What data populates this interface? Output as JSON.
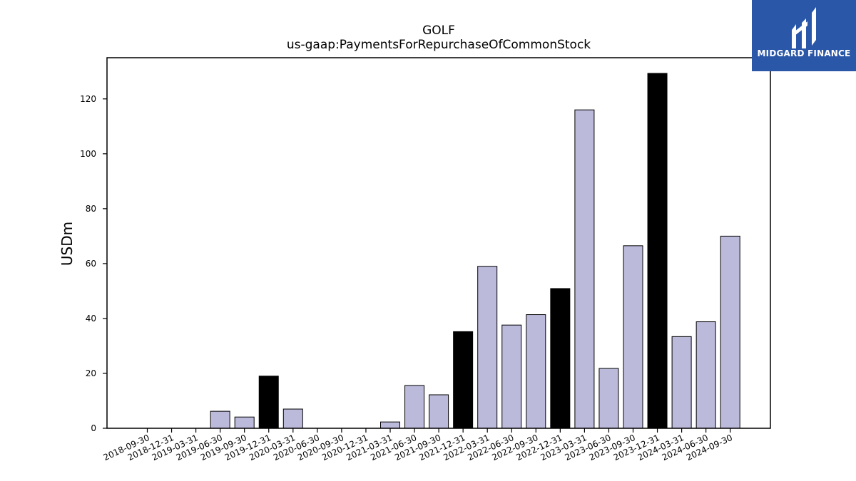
{
  "chart_data": {
    "type": "bar",
    "title": "GOLF",
    "subtitle": "us-gaap:PaymentsForRepurchaseOfCommonStock",
    "xlabel": "",
    "ylabel": "USDm",
    "ylim": [
      0,
      135
    ],
    "yticks": [
      0,
      20,
      40,
      60,
      80,
      100,
      120
    ],
    "categories": [
      "2018-09-30",
      "2018-12-31",
      "2019-03-31",
      "2019-06-30",
      "2019-09-30",
      "2019-12-31",
      "2020-03-31",
      "2020-06-30",
      "2020-09-30",
      "2020-12-31",
      "2021-03-31",
      "2021-06-30",
      "2021-09-30",
      "2021-12-31",
      "2022-03-31",
      "2022-06-30",
      "2022-09-30",
      "2022-12-31",
      "2023-03-31",
      "2023-06-30",
      "2023-09-30",
      "2023-12-31",
      "2024-03-31",
      "2024-06-30",
      "2024-09-30"
    ],
    "values": [
      0,
      0,
      0,
      6.2,
      4.1,
      19.0,
      7.0,
      0,
      0,
      0,
      2.3,
      15.6,
      12.2,
      35.2,
      59.0,
      37.6,
      41.4,
      50.9,
      116.0,
      21.8,
      66.5,
      129.3,
      33.4,
      38.8,
      70.0
    ],
    "highlight": [
      false,
      false,
      false,
      false,
      false,
      true,
      false,
      false,
      false,
      false,
      false,
      false,
      false,
      true,
      false,
      false,
      false,
      true,
      false,
      false,
      false,
      true,
      false,
      false,
      false
    ],
    "colors": {
      "bar": "#bcbadb",
      "highlight": "#000000",
      "edge": "#000000",
      "axis": "#000000"
    },
    "grid": false,
    "legend": "none"
  },
  "logo": {
    "text": "MIDGARD FINANCE",
    "icon": "midgard-logo-icon",
    "color": "#2b57a8"
  }
}
